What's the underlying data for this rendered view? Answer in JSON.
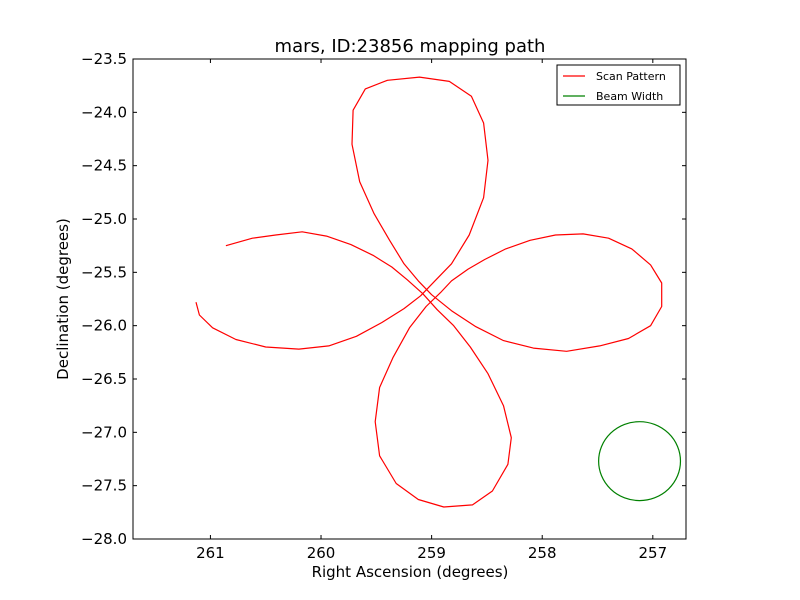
{
  "chart_data": {
    "type": "line",
    "title": "mars, ID:23856 mapping path",
    "xlabel": "Right Ascension (degrees)",
    "ylabel": "Declination (degrees)",
    "xlim": [
      261.7,
      256.7
    ],
    "ylim": [
      -28.0,
      -23.5
    ],
    "x_ticks": [
      261,
      260,
      259,
      258,
      257
    ],
    "x_tick_labels": [
      "261",
      "260",
      "259",
      "258",
      "257"
    ],
    "y_ticks": [
      -23.5,
      -24.0,
      -24.5,
      -25.0,
      -25.5,
      -26.0,
      -26.5,
      -27.0,
      -27.5,
      -28.0
    ],
    "y_tick_labels": [
      "−23.5",
      "−24.0",
      "−24.5",
      "−25.0",
      "−25.5",
      "−26.0",
      "−26.5",
      "−27.0",
      "−27.5",
      "−28.0"
    ],
    "grid": false,
    "legend_position": "top-right",
    "series": [
      {
        "name": "Scan Pattern",
        "color": "#ff0000",
        "points": [
          [
            260.86,
            -25.25
          ],
          [
            260.62,
            -25.18
          ],
          [
            260.41,
            -25.15
          ],
          [
            260.17,
            -25.12
          ],
          [
            259.95,
            -25.16
          ],
          [
            259.73,
            -25.24
          ],
          [
            259.53,
            -25.34
          ],
          [
            259.36,
            -25.45
          ],
          [
            259.22,
            -25.57
          ],
          [
            259.08,
            -25.7
          ],
          [
            258.95,
            -25.85
          ],
          [
            258.8,
            -26.0
          ],
          [
            258.65,
            -26.2
          ],
          [
            258.49,
            -26.45
          ],
          [
            258.35,
            -26.75
          ],
          [
            258.28,
            -27.05
          ],
          [
            258.31,
            -27.3
          ],
          [
            258.45,
            -27.55
          ],
          [
            258.63,
            -27.68
          ],
          [
            258.89,
            -27.7
          ],
          [
            259.12,
            -27.63
          ],
          [
            259.32,
            -27.48
          ],
          [
            259.47,
            -27.22
          ],
          [
            259.51,
            -26.9
          ],
          [
            259.47,
            -26.58
          ],
          [
            259.35,
            -26.3
          ],
          [
            259.2,
            -26.02
          ],
          [
            259.05,
            -25.82
          ],
          [
            258.92,
            -25.69
          ],
          [
            258.82,
            -25.58
          ],
          [
            258.67,
            -25.47
          ],
          [
            258.52,
            -25.38
          ],
          [
            258.33,
            -25.28
          ],
          [
            258.11,
            -25.2
          ],
          [
            257.88,
            -25.15
          ],
          [
            257.63,
            -25.14
          ],
          [
            257.4,
            -25.18
          ],
          [
            257.19,
            -25.28
          ],
          [
            257.02,
            -25.43
          ],
          [
            256.92,
            -25.6
          ],
          [
            256.92,
            -25.82
          ],
          [
            257.02,
            -26.0
          ],
          [
            257.22,
            -26.12
          ],
          [
            257.48,
            -26.19
          ],
          [
            257.78,
            -26.24
          ],
          [
            258.08,
            -26.21
          ],
          [
            258.35,
            -26.14
          ],
          [
            258.6,
            -26.01
          ],
          [
            258.82,
            -25.86
          ],
          [
            259.0,
            -25.71
          ],
          [
            259.12,
            -25.58
          ],
          [
            259.25,
            -25.42
          ],
          [
            259.38,
            -25.2
          ],
          [
            259.52,
            -24.95
          ],
          [
            259.65,
            -24.65
          ],
          [
            259.72,
            -24.3
          ],
          [
            259.71,
            -23.98
          ],
          [
            259.6,
            -23.78
          ],
          [
            259.4,
            -23.7
          ],
          [
            259.11,
            -23.67
          ],
          [
            258.84,
            -23.71
          ],
          [
            258.64,
            -23.85
          ],
          [
            258.53,
            -24.1
          ],
          [
            258.49,
            -24.45
          ],
          [
            258.53,
            -24.8
          ],
          [
            258.66,
            -25.15
          ],
          [
            258.82,
            -25.42
          ],
          [
            258.97,
            -25.58
          ],
          [
            259.1,
            -25.72
          ],
          [
            259.25,
            -25.84
          ],
          [
            259.45,
            -25.97
          ],
          [
            259.68,
            -26.1
          ],
          [
            259.93,
            -26.19
          ],
          [
            260.2,
            -26.22
          ],
          [
            260.5,
            -26.2
          ],
          [
            260.77,
            -26.13
          ],
          [
            260.98,
            -26.02
          ],
          [
            261.1,
            -25.9
          ],
          [
            261.13,
            -25.78
          ]
        ]
      },
      {
        "name": "Beam Width",
        "color": "#008000",
        "center": [
          257.12,
          -27.27
        ],
        "radius_ra": 0.37,
        "radius_dec": 0.37
      }
    ]
  }
}
